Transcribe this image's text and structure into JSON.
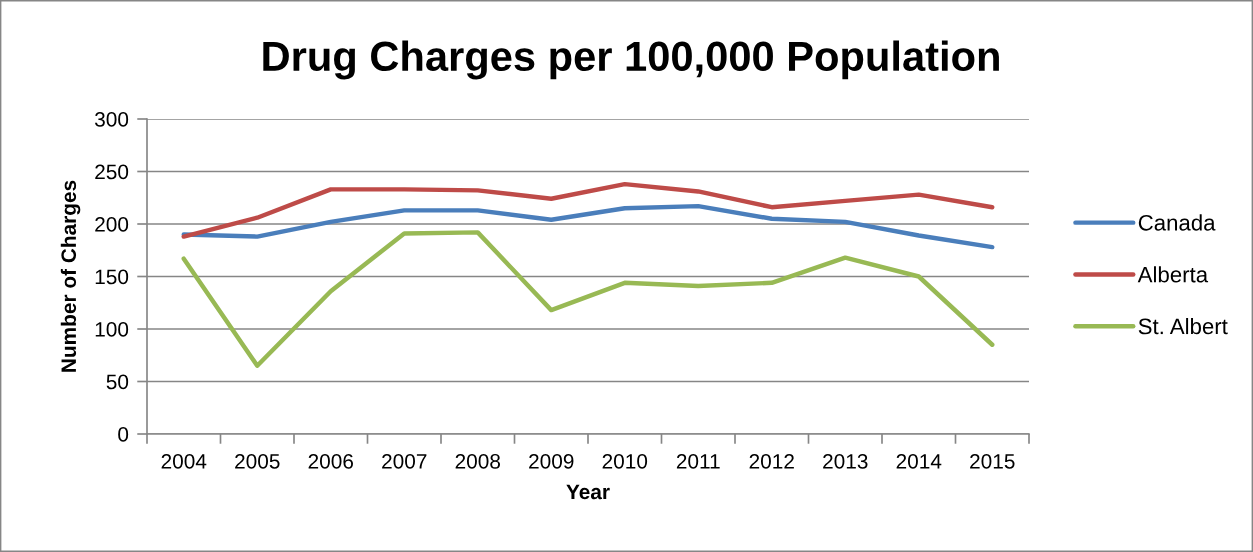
{
  "chart_data": {
    "type": "line",
    "title": "Drug Charges per 100,000 Population",
    "xlabel": "Year",
    "ylabel": "Number of Charges",
    "categories": [
      "2004",
      "2005",
      "2006",
      "2007",
      "2008",
      "2009",
      "2010",
      "2011",
      "2012",
      "2013",
      "2014",
      "2015"
    ],
    "series": [
      {
        "name": "Canada",
        "color": "#4a7ebb",
        "values": [
          190,
          188,
          202,
          213,
          213,
          204,
          215,
          217,
          205,
          202,
          189,
          178
        ]
      },
      {
        "name": "Alberta",
        "color": "#be4b48",
        "values": [
          188,
          206,
          233,
          233,
          232,
          224,
          238,
          231,
          216,
          222,
          228,
          216
        ]
      },
      {
        "name": "St. Albert",
        "color": "#98b954",
        "values": [
          167,
          65,
          136,
          191,
          192,
          118,
          144,
          141,
          144,
          168,
          150,
          85
        ]
      }
    ],
    "ylim": [
      0,
      300
    ],
    "yticks": [
      0,
      50,
      100,
      150,
      200,
      250,
      300
    ],
    "grid": "y",
    "legend": "right",
    "marker": "none",
    "line_style": "solid"
  }
}
